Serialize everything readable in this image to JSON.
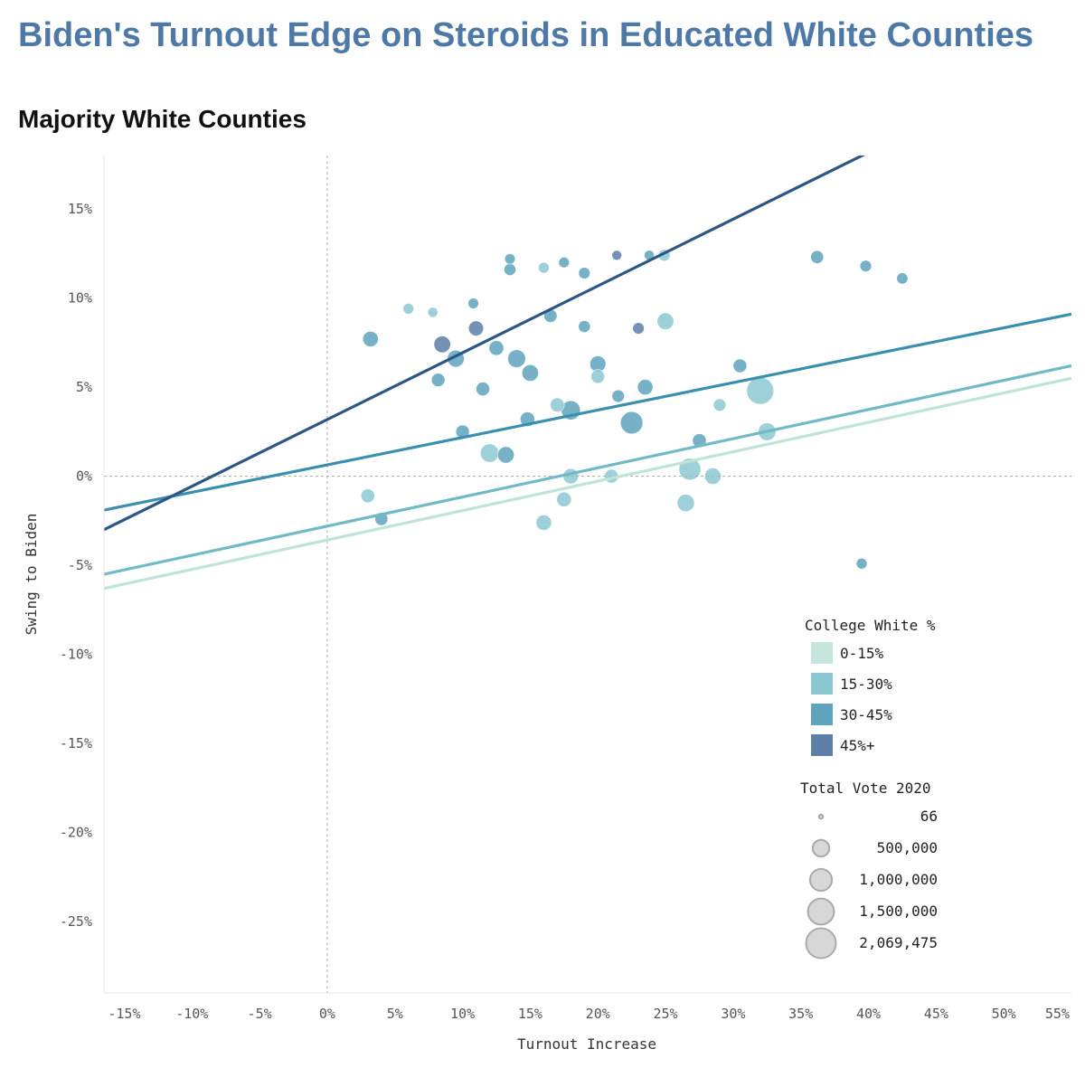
{
  "title": "Biden's Turnout Edge on Steroids in Educated White Counties",
  "subtitle": "Majority White Counties",
  "chart_data": {
    "type": "scatter",
    "xlabel": "Turnout Increase",
    "ylabel": "Swing to Biden",
    "xlim": [
      -0.165,
      0.55
    ],
    "ylim": [
      -0.29,
      0.18
    ],
    "x_ticks": [
      -0.15,
      -0.1,
      -0.05,
      0,
      0.05,
      0.1,
      0.15,
      0.2,
      0.25,
      0.3,
      0.35,
      0.4,
      0.45,
      0.5,
      0.55
    ],
    "x_tick_labels": [
      "-15%",
      "-10%",
      "-5%",
      "0%",
      "5%",
      "10%",
      "15%",
      "20%",
      "25%",
      "30%",
      "35%",
      "40%",
      "45%",
      "50%",
      "55%"
    ],
    "y_ticks": [
      0.15,
      0.1,
      0.05,
      0,
      -0.05,
      -0.1,
      -0.15,
      -0.2,
      -0.25
    ],
    "y_tick_labels": [
      "15%",
      "10%",
      "5%",
      "0%",
      "-5%",
      "-10%",
      "-15%",
      "-20%",
      "-25%"
    ],
    "reference_lines": {
      "x": 0,
      "y": 0
    },
    "grid": false,
    "legend_placement": "bottom-right",
    "color_legend": {
      "title": "College White %",
      "items": [
        {
          "label": "0-15%",
          "color": "#c5e6dc"
        },
        {
          "label": "15-30%",
          "color": "#8cc8d2"
        },
        {
          "label": "30-45%",
          "color": "#5fa3bd"
        },
        {
          "label": "45%+",
          "color": "#5d7ea6"
        }
      ]
    },
    "size_legend": {
      "title": "Total Vote 2020",
      "items": [
        {
          "label": "66",
          "value": 66
        },
        {
          "label": "500,000",
          "value": 500000
        },
        {
          "label": "1,000,000",
          "value": 1000000
        },
        {
          "label": "1,500,000",
          "value": 1500000
        },
        {
          "label": "2,069,475",
          "value": 2069475
        }
      ]
    },
    "trend_lines": [
      {
        "group": "0-15%",
        "color": "#bfe3d6",
        "x": [
          -0.165,
          0.55
        ],
        "y": [
          -0.063,
          0.055
        ]
      },
      {
        "group": "15-30%",
        "color": "#72b9c6",
        "x": [
          -0.165,
          0.55
        ],
        "y": [
          -0.055,
          0.062
        ]
      },
      {
        "group": "30-45%",
        "color": "#3a8fae",
        "x": [
          -0.165,
          0.55
        ],
        "y": [
          -0.019,
          0.091
        ]
      },
      {
        "group": "45%+",
        "color": "#2c5784",
        "x": [
          -0.165,
          0.55
        ],
        "y": [
          -0.03,
          0.238
        ]
      }
    ],
    "points": [
      {
        "x": 0.032,
        "y": 0.077,
        "g": 2,
        "v": 420000
      },
      {
        "x": 0.06,
        "y": 0.094,
        "g": 1,
        "v": 150000
      },
      {
        "x": 0.078,
        "y": 0.092,
        "g": 1,
        "v": 120000
      },
      {
        "x": 0.085,
        "y": 0.074,
        "g": 3,
        "v": 500000
      },
      {
        "x": 0.095,
        "y": 0.066,
        "g": 2,
        "v": 520000
      },
      {
        "x": 0.11,
        "y": 0.083,
        "g": 3,
        "v": 380000
      },
      {
        "x": 0.125,
        "y": 0.072,
        "g": 2,
        "v": 360000
      },
      {
        "x": 0.14,
        "y": 0.066,
        "g": 2,
        "v": 600000
      },
      {
        "x": 0.15,
        "y": 0.058,
        "g": 2,
        "v": 500000
      },
      {
        "x": 0.165,
        "y": 0.09,
        "g": 2,
        "v": 260000
      },
      {
        "x": 0.135,
        "y": 0.122,
        "g": 2,
        "v": 130000
      },
      {
        "x": 0.135,
        "y": 0.116,
        "g": 2,
        "v": 200000
      },
      {
        "x": 0.16,
        "y": 0.117,
        "g": 1,
        "v": 150000
      },
      {
        "x": 0.175,
        "y": 0.12,
        "g": 2,
        "v": 140000
      },
      {
        "x": 0.19,
        "y": 0.114,
        "g": 2,
        "v": 180000
      },
      {
        "x": 0.238,
        "y": 0.124,
        "g": 2,
        "v": 120000
      },
      {
        "x": 0.249,
        "y": 0.124,
        "g": 1,
        "v": 190000
      },
      {
        "x": 0.214,
        "y": 0.124,
        "g": 3,
        "v": 110000
      },
      {
        "x": 0.108,
        "y": 0.097,
        "g": 2,
        "v": 140000
      },
      {
        "x": 0.19,
        "y": 0.084,
        "g": 2,
        "v": 200000
      },
      {
        "x": 0.25,
        "y": 0.087,
        "g": 1,
        "v": 500000
      },
      {
        "x": 0.225,
        "y": 0.03,
        "g": 2,
        "v": 1050000
      },
      {
        "x": 0.18,
        "y": 0.037,
        "g": 2,
        "v": 720000
      },
      {
        "x": 0.12,
        "y": 0.013,
        "g": 1,
        "v": 650000
      },
      {
        "x": 0.1,
        "y": 0.025,
        "g": 2,
        "v": 280000
      },
      {
        "x": 0.2,
        "y": 0.063,
        "g": 2,
        "v": 450000
      },
      {
        "x": 0.2,
        "y": 0.056,
        "g": 1,
        "v": 300000
      },
      {
        "x": 0.235,
        "y": 0.05,
        "g": 2,
        "v": 420000
      },
      {
        "x": 0.32,
        "y": 0.048,
        "g": 1,
        "v": 1650000
      },
      {
        "x": 0.325,
        "y": 0.025,
        "g": 1,
        "v": 580000
      },
      {
        "x": 0.305,
        "y": 0.062,
        "g": 2,
        "v": 300000
      },
      {
        "x": 0.362,
        "y": 0.123,
        "g": 2,
        "v": 250000
      },
      {
        "x": 0.398,
        "y": 0.118,
        "g": 2,
        "v": 180000
      },
      {
        "x": 0.425,
        "y": 0.111,
        "g": 2,
        "v": 160000
      },
      {
        "x": 0.395,
        "y": -0.049,
        "g": 2,
        "v": 150000
      },
      {
        "x": 0.268,
        "y": 0.004,
        "g": 1,
        "v": 1000000
      },
      {
        "x": 0.285,
        "y": 0.0,
        "g": 1,
        "v": 480000
      },
      {
        "x": 0.265,
        "y": -0.015,
        "g": 1,
        "v": 560000
      },
      {
        "x": 0.275,
        "y": 0.02,
        "g": 2,
        "v": 300000
      },
      {
        "x": 0.16,
        "y": -0.026,
        "g": 1,
        "v": 420000
      },
      {
        "x": 0.175,
        "y": -0.013,
        "g": 1,
        "v": 350000
      },
      {
        "x": 0.18,
        "y": 0.0,
        "g": 1,
        "v": 400000
      },
      {
        "x": 0.21,
        "y": 0.0,
        "g": 1,
        "v": 300000
      },
      {
        "x": 0.03,
        "y": -0.011,
        "g": 1,
        "v": 300000
      },
      {
        "x": 0.04,
        "y": -0.024,
        "g": 2,
        "v": 250000
      },
      {
        "x": 0.132,
        "y": 0.012,
        "g": 2,
        "v": 500000
      },
      {
        "x": 0.148,
        "y": 0.032,
        "g": 2,
        "v": 350000
      },
      {
        "x": 0.115,
        "y": 0.049,
        "g": 2,
        "v": 300000
      },
      {
        "x": 0.082,
        "y": 0.054,
        "g": 2,
        "v": 280000
      },
      {
        "x": 0.17,
        "y": 0.04,
        "g": 1,
        "v": 320000
      },
      {
        "x": 0.215,
        "y": 0.045,
        "g": 2,
        "v": 220000
      },
      {
        "x": 0.29,
        "y": 0.04,
        "g": 1,
        "v": 220000
      },
      {
        "x": 0.23,
        "y": 0.083,
        "g": 3,
        "v": 180000
      }
    ]
  }
}
